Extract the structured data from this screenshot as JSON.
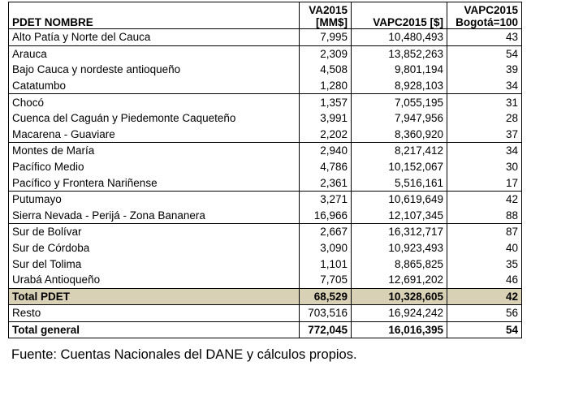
{
  "table": {
    "headers": {
      "name": "PDET NOMBRE",
      "va_line1": "VA2015",
      "va_line2": "[MM$]",
      "vapc": "VAPC2015 [$]",
      "idx_line1": "VAPC2015",
      "idx_line2": "Bogotá=100"
    },
    "rows": [
      {
        "name": "Alto Patía y Norte del Cauca",
        "va": "7,995",
        "vapc": "10,480,493",
        "idx": "43"
      },
      {
        "name": "Arauca",
        "va": "2,309",
        "vapc": "13,852,263",
        "idx": "54"
      },
      {
        "name": "Bajo Cauca y nordeste antioqueño",
        "va": "4,508",
        "vapc": "9,801,194",
        "idx": "39"
      },
      {
        "name": "Catatumbo",
        "va": "1,280",
        "vapc": "8,928,103",
        "idx": "34"
      },
      {
        "name": "Chocó",
        "va": "1,357",
        "vapc": "7,055,195",
        "idx": "31"
      },
      {
        "name": "Cuenca del Caguán y Piedemonte Caqueteño",
        "va": "3,991",
        "vapc": "7,947,956",
        "idx": "28"
      },
      {
        "name": "Macarena - Guaviare",
        "va": "2,202",
        "vapc": "8,360,920",
        "idx": "37"
      },
      {
        "name": "Montes de María",
        "va": "2,940",
        "vapc": "8,217,412",
        "idx": "34"
      },
      {
        "name": "Pacífico Medio",
        "va": "4,786",
        "vapc": "10,152,067",
        "idx": "30"
      },
      {
        "name": "Pacífico y Frontera Nariñense",
        "va": "2,361",
        "vapc": "5,516,161",
        "idx": "17"
      },
      {
        "name": "Putumayo",
        "va": "3,271",
        "vapc": "10,619,649",
        "idx": "42"
      },
      {
        "name": "Sierra Nevada - Perijá - Zona Bananera",
        "va": "16,966",
        "vapc": "12,107,345",
        "idx": "88"
      },
      {
        "name": "Sur de Bolívar",
        "va": "2,667",
        "vapc": "16,312,717",
        "idx": "87"
      },
      {
        "name": "Sur de Córdoba",
        "va": "3,090",
        "vapc": "10,923,493",
        "idx": "40"
      },
      {
        "name": "Sur del Tolima",
        "va": "1,101",
        "vapc": "8,865,825",
        "idx": "35"
      },
      {
        "name": "Urabá Antioqueño",
        "va": "7,705",
        "vapc": "12,691,202",
        "idx": "46"
      }
    ],
    "total_pdet": {
      "name": "Total PDET",
      "va": "68,529",
      "vapc": "10,328,605",
      "idx": "42"
    },
    "resto": {
      "name": "Resto",
      "va": "703,516",
      "vapc": "16,924,242",
      "idx": "56"
    },
    "total_general": {
      "name": "Total general",
      "va": "772,045",
      "vapc": "16,016,395",
      "idx": "54"
    }
  },
  "source": "Fuente: Cuentas Nacionales del DANE y cálculos propios."
}
